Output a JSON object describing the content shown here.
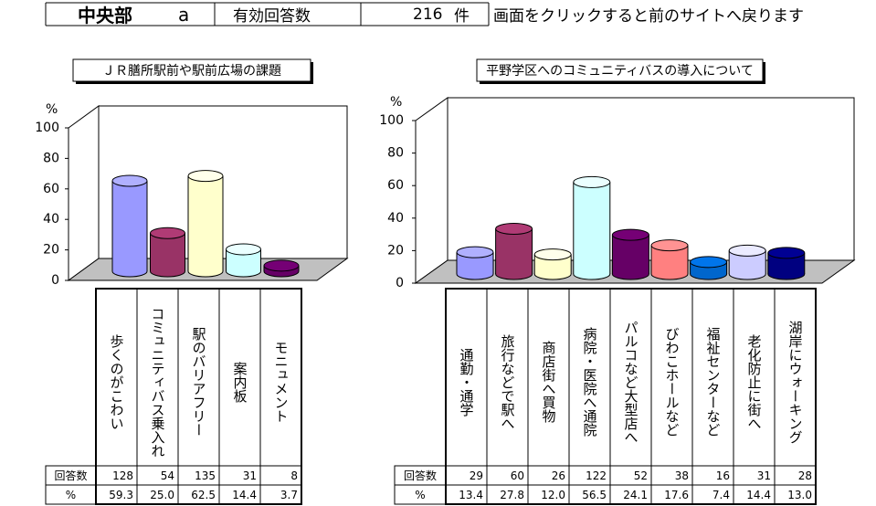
{
  "header": {
    "area": "中央部",
    "section": "a",
    "label": "有効回答数",
    "count": 216,
    "unit": "件",
    "note": "画面をクリックすると前のサイトへ戻ります"
  },
  "chart_data": [
    {
      "type": "bar3d",
      "title": "ＪＲ膳所駅前や駅前広場の課題",
      "unit": "%",
      "categories": [
        "歩くのがこわい",
        "コミュニティバス乗入れ",
        "駅のバリアフリー",
        "案内板",
        "モニュメント"
      ],
      "values": [
        59.3,
        25.0,
        62.5,
        14.4,
        3.7
      ],
      "value_labels": [
        "59.3",
        "25.0",
        "62.5",
        "14.4",
        "3.7"
      ],
      "counts": [
        128,
        54,
        135,
        31,
        8
      ],
      "table_row_labels": [
        "回答数",
        "%"
      ],
      "colors": [
        "#9999ff",
        "#993366",
        "#ffffcc",
        "#ccffff",
        "#660066"
      ],
      "ylim": [
        0,
        100
      ],
      "yticks": [
        0,
        20,
        40,
        60,
        80,
        100
      ]
    },
    {
      "type": "bar3d",
      "title": "平野学区へのコミュニティバスの導入について",
      "unit": "%",
      "categories": [
        "通勤・通学",
        "旅行などで駅へ",
        "商店街へ買物",
        "病院・医院へ通院",
        "パルコなど大型店へ",
        "びわこホールなど",
        "福祉センターなど",
        "老化防止に街へ",
        "湖岸にウォーキング"
      ],
      "values": [
        13.4,
        27.8,
        12.0,
        56.5,
        24.1,
        17.6,
        7.4,
        14.4,
        13.0
      ],
      "value_labels": [
        "13.4",
        "27.8",
        "12.0",
        "56.5",
        "24.1",
        "17.6",
        "7.4",
        "14.4",
        "13.0"
      ],
      "counts": [
        29,
        60,
        26,
        122,
        52,
        38,
        16,
        31,
        28
      ],
      "table_row_labels": [
        "回答数",
        "%"
      ],
      "colors": [
        "#9999ff",
        "#993366",
        "#ffffcc",
        "#ccffff",
        "#660066",
        "#ff8080",
        "#0066cc",
        "#ccccff",
        "#000080"
      ],
      "ylim": [
        0,
        100
      ],
      "yticks": [
        0,
        20,
        40,
        60,
        80,
        100
      ]
    }
  ]
}
